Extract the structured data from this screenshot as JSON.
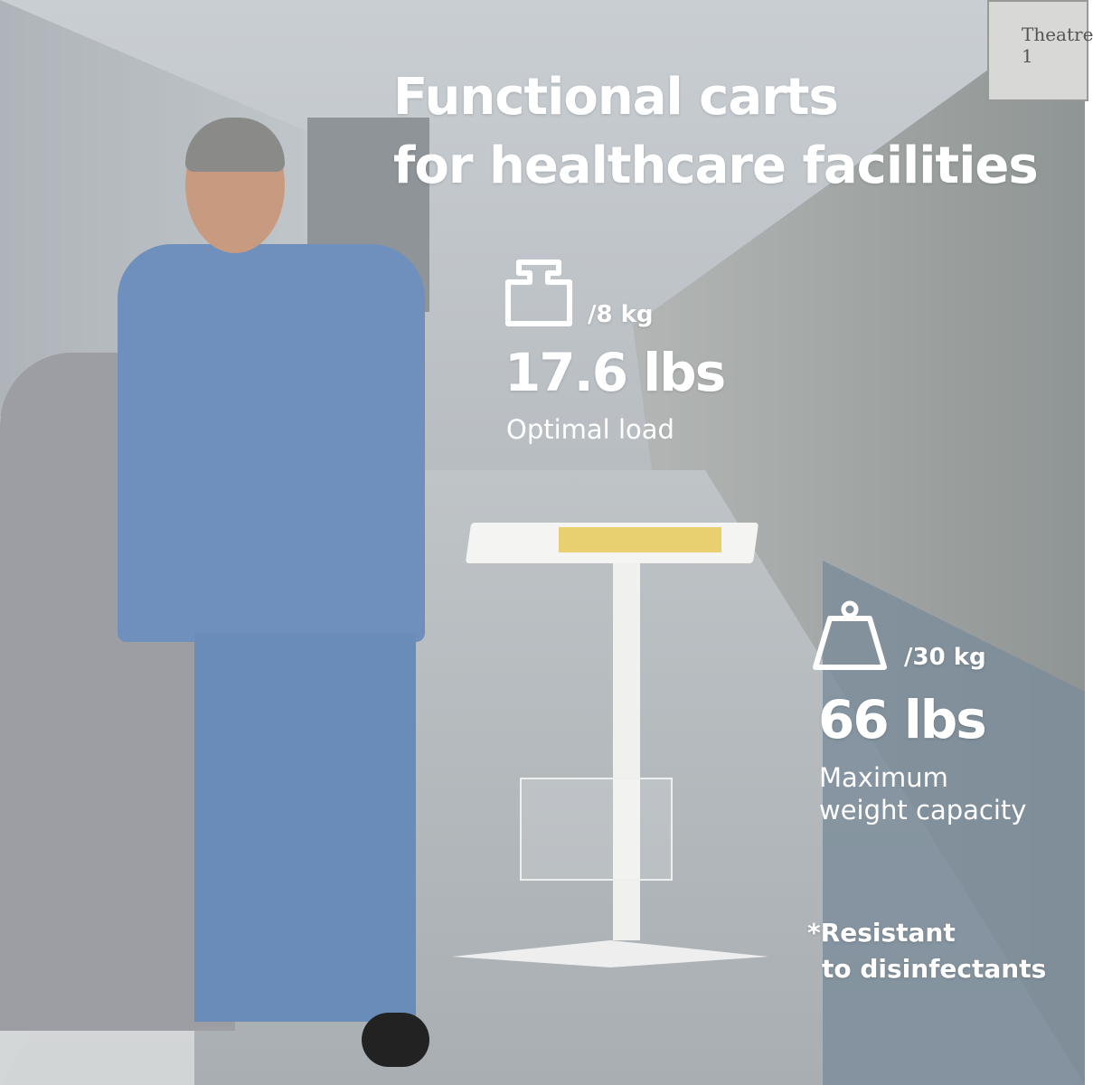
{
  "headline": {
    "line1": "Functional carts",
    "line2": "for healthcare facilities"
  },
  "door_sign": "Theatre 1",
  "specs": [
    {
      "icon": "weight-small-icon",
      "metric": "/8 kg",
      "imperial": "17.6 lbs",
      "label": "Optimal load"
    },
    {
      "icon": "weight-large-icon",
      "metric": "/30 kg",
      "imperial": "66 lbs",
      "label_line1": "Maximum",
      "label_line2": "weight capacity"
    }
  ],
  "note": {
    "line1": "*Resistant",
    "line2": "to disinfectants"
  },
  "colors": {
    "text": "#ffffff",
    "scrubs": "#6f90bd"
  }
}
